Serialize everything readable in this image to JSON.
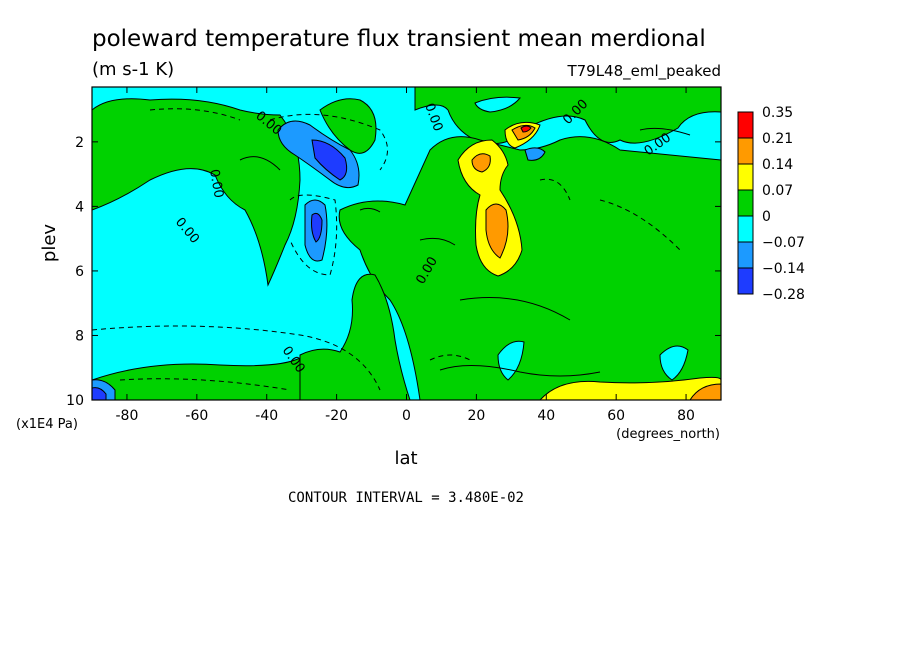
{
  "chart_data": {
    "type": "heatmap",
    "title": "poleward temperature flux transient mean merdional",
    "units": "(m s-1 K)",
    "run_label": "T79L48_eml_peaked",
    "xlabel": "lat",
    "x_units": "(degrees_north)",
    "ylabel": "plev",
    "y_units": "(x1E4 Pa)",
    "x_ticks": [
      "-80",
      "-60",
      "-40",
      "-20",
      "0",
      "20",
      "40",
      "60",
      "80"
    ],
    "x_tick_values": [
      -80,
      -60,
      -40,
      -20,
      0,
      20,
      40,
      60,
      80
    ],
    "y_ticks": [
      "2",
      "4",
      "6",
      "8",
      "10"
    ],
    "y_tick_values": [
      2,
      4,
      6,
      8,
      10
    ],
    "xlim": [
      -90,
      90
    ],
    "ylim": [
      0.3,
      10
    ],
    "y_inverted": true,
    "contour_interval_text": "CONTOUR INTERVAL = 3.480E-02",
    "contour_label": "0.00",
    "colorbar": {
      "labels": [
        "0.35",
        "0.21",
        "0.14",
        "0.07",
        "0",
        "−0.07",
        "−0.14",
        "−0.28"
      ],
      "colors": [
        "#ff0000",
        "#ff9a00",
        "#ffff00",
        "#00d200",
        "#00ffff",
        "#1c9aff",
        "#1e3cff"
      ]
    },
    "colors": {
      "neg_strong": "#1e3cff",
      "neg_mid": "#1c9aff",
      "neg_weak": "#00ffff",
      "pos_weak": "#00d200",
      "pos_mid": "#ffff00",
      "pos_strong": "#ff9a00",
      "pos_max": "#ff0000"
    }
  }
}
